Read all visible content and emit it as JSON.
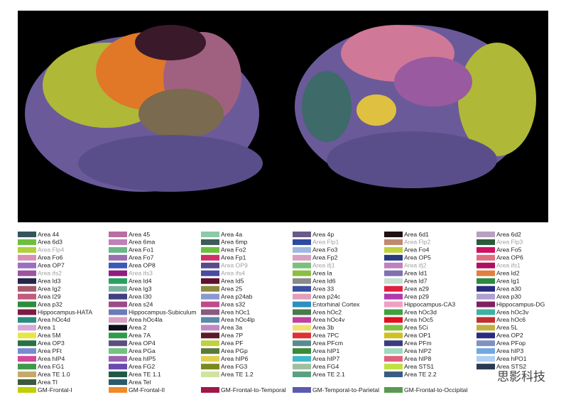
{
  "legend": {
    "columns": [
      [
        {
          "label": "Area 44",
          "color": "#34545c"
        },
        {
          "label": "Area 6d3",
          "color": "#6cbf3c"
        },
        {
          "label": "Area Flp4",
          "color": "#b0d040",
          "muted": true
        },
        {
          "label": "Area Fo6",
          "color": "#d98fb5"
        },
        {
          "label": "Area OP7",
          "color": "#9a6fc1"
        },
        {
          "label": "Area ifs2",
          "color": "#9b55a0",
          "muted": true
        },
        {
          "label": "Area Id3",
          "color": "#25254a"
        },
        {
          "label": "Area Ig2",
          "color": "#a85a6a"
        },
        {
          "label": "Area I29",
          "color": "#c25a7d"
        },
        {
          "label": "Area p32",
          "color": "#2d8c3c"
        },
        {
          "label": "Hippocampus-HATA",
          "color": "#7c1b43"
        },
        {
          "label": "Area hOc4d",
          "color": "#2a8c80"
        },
        {
          "label": "Area 1",
          "color": "#d9a8d9"
        },
        {
          "label": "Area 5M",
          "color": "#e6e644"
        },
        {
          "label": "Area OP3",
          "color": "#2a7040"
        },
        {
          "label": "Area PFt",
          "color": "#7a8ad0"
        },
        {
          "label": "Area hIP4",
          "color": "#d24a9a"
        },
        {
          "label": "Area FG1",
          "color": "#3e9a4a"
        },
        {
          "label": "Area TE 1.0",
          "color": "#c4a96a"
        },
        {
          "label": "Area TI",
          "color": "#3b5a3b"
        }
      ],
      [
        {
          "label": "Area 45",
          "color": "#b86ea0"
        },
        {
          "label": "Area 6ma",
          "color": "#c080b8"
        },
        {
          "label": "Area Fo1",
          "color": "#6ab888"
        },
        {
          "label": "Area Fo7",
          "color": "#9a6fb0"
        },
        {
          "label": "Area OP8",
          "color": "#3a5ab8"
        },
        {
          "label": "Area ifs3",
          "color": "#901e80",
          "muted": true
        },
        {
          "label": "Area Id4",
          "color": "#2aa060"
        },
        {
          "label": "Area Ig3",
          "color": "#7ab0a0"
        },
        {
          "label": "Area I30",
          "color": "#3e3e80"
        },
        {
          "label": "Area s24",
          "color": "#9a4a8a"
        },
        {
          "label": "Hippocampus-Subiculum",
          "color": "#6c7ab8"
        },
        {
          "label": "Area hOc4la",
          "color": "#d8a0c0"
        },
        {
          "label": "Area 2",
          "color": "#0e0e1a"
        },
        {
          "label": "Area 7A",
          "color": "#2e9a4a"
        },
        {
          "label": "Area OP4",
          "color": "#5e4e80"
        },
        {
          "label": "Area PGa",
          "color": "#76c080"
        },
        {
          "label": "Area hIP5",
          "color": "#9a62b0"
        },
        {
          "label": "Area FG2",
          "color": "#6a4ab0"
        },
        {
          "label": "Area TE 1.1",
          "color": "#1e5a44"
        },
        {
          "label": "Area TeI",
          "color": "#2a5a6a"
        }
      ],
      [
        {
          "label": "Area 4a",
          "color": "#8ccaa8"
        },
        {
          "label": "Area 6mp",
          "color": "#3e5a5a"
        },
        {
          "label": "Area Fo2",
          "color": "#6ac040"
        },
        {
          "label": "Area Fp1",
          "color": "#d0306a"
        },
        {
          "label": "Area OP9",
          "color": "#5a4a8a",
          "muted": true
        },
        {
          "label": "Area ifs4",
          "color": "#4a4aa0",
          "muted": true
        },
        {
          "label": "Area Id5",
          "color": "#60102a"
        },
        {
          "label": "Area 25",
          "color": "#8e8a40"
        },
        {
          "label": "Area p24ab",
          "color": "#8a9ad0"
        },
        {
          "label": "Area s32",
          "color": "#c04a8a"
        },
        {
          "label": "Area hOc1",
          "color": "#8a5a80"
        },
        {
          "label": "Area hOc4lp",
          "color": "#5a8aa8"
        },
        {
          "label": "Area 3a",
          "color": "#c08ac0"
        },
        {
          "label": "Area 7P",
          "color": "#5a1a2a"
        },
        {
          "label": "Area PF",
          "color": "#c0d040"
        },
        {
          "label": "Area PGp",
          "color": "#5a7a3a"
        },
        {
          "label": "Area hIP6",
          "color": "#e0d050"
        },
        {
          "label": "Area FG3",
          "color": "#7a8a20"
        },
        {
          "label": "Area TE 1.2",
          "color": "#d0e4a0"
        }
      ],
      [
        {
          "label": "Area 4p",
          "color": "#6a5a8a"
        },
        {
          "label": "Area Flp1",
          "color": "#2c4aa0",
          "muted": true
        },
        {
          "label": "Area Fo3",
          "color": "#a0b8e0"
        },
        {
          "label": "Area Fp2",
          "color": "#d8a0c0"
        },
        {
          "label": "Area ifj1",
          "color": "#7ac07a",
          "muted": true
        },
        {
          "label": "Area Ia",
          "color": "#8ac040"
        },
        {
          "label": "Area Id6",
          "color": "#8a8a8a"
        },
        {
          "label": "Area 33",
          "color": "#3a50a0"
        },
        {
          "label": "Area p24c",
          "color": "#e0a0b8"
        },
        {
          "label": "Entorhinal Cortex",
          "color": "#2a90c0"
        },
        {
          "label": "Area hOc2",
          "color": "#4a7a4a"
        },
        {
          "label": "Area hOc4v",
          "color": "#c040a0"
        },
        {
          "label": "Area 3b",
          "color": "#f0e070"
        },
        {
          "label": "Area 7PC",
          "color": "#e03030"
        },
        {
          "label": "Area PFcm",
          "color": "#5a8a90"
        },
        {
          "label": "Area hIP1",
          "color": "#3a8a3a"
        },
        {
          "label": "Area hIP7",
          "color": "#40b8c8"
        },
        {
          "label": "Area FG4",
          "color": "#a0c0a0"
        },
        {
          "label": "Area TE 2.1",
          "color": "#5aa080"
        }
      ],
      [
        {
          "label": "Area 6d1",
          "color": "#201010"
        },
        {
          "label": "Area Flp2",
          "color": "#c08a70",
          "muted": true
        },
        {
          "label": "Area Fo4",
          "color": "#c0d040"
        },
        {
          "label": "Area OP5",
          "color": "#2a3a80"
        },
        {
          "label": "Area ifj2",
          "color": "#c080c0",
          "muted": true
        },
        {
          "label": "Area Id1",
          "color": "#8070b0"
        },
        {
          "label": "Area Id7",
          "color": "#c8e0d0"
        },
        {
          "label": "Area a29",
          "color": "#e02040"
        },
        {
          "label": "Area p29",
          "color": "#b03ab0"
        },
        {
          "label": "Hippocampus-CA3",
          "color": "#f0a0c0"
        },
        {
          "label": "Area hOc3d",
          "color": "#40a040"
        },
        {
          "label": "Area hOc5",
          "color": "#e01020"
        },
        {
          "label": "Area 5Ci",
          "color": "#80c040"
        },
        {
          "label": "Area OP1",
          "color": "#d0c020"
        },
        {
          "label": "Area PFm",
          "color": "#3a3a80"
        },
        {
          "label": "Area hIP2",
          "color": "#a0d8c0"
        },
        {
          "label": "Area hIP8",
          "color": "#e06080"
        },
        {
          "label": "Area STS1",
          "color": "#c0e040"
        },
        {
          "label": "Area TE 2.2",
          "color": "#3a5a80"
        }
      ],
      [
        {
          "label": "Area 6d2",
          "color": "#b8a0c0"
        },
        {
          "label": "Area Flp3",
          "color": "#2a5a3a",
          "muted": true
        },
        {
          "label": "Area Fo5",
          "color": "#d01060"
        },
        {
          "label": "Area OP6",
          "color": "#e07080"
        },
        {
          "label": "Area ifs1",
          "color": "#b01060",
          "muted": true
        },
        {
          "label": "Area Id2",
          "color": "#e08040"
        },
        {
          "label": "Area Ig1",
          "color": "#2a8a40"
        },
        {
          "label": "Area a30",
          "color": "#2a2a80"
        },
        {
          "label": "Area p30",
          "color": "#b0a0d0"
        },
        {
          "label": "Hippocampus-DG",
          "color": "#802060"
        },
        {
          "label": "Area hOc3v",
          "color": "#40b0a0"
        },
        {
          "label": "Area hOc6",
          "color": "#c03030"
        },
        {
          "label": "Area 5L",
          "color": "#c0b040"
        },
        {
          "label": "Area OP2",
          "color": "#2a2a80"
        },
        {
          "label": "Area PFop",
          "color": "#8090c0"
        },
        {
          "label": "Area hIP3",
          "color": "#70a8e0"
        },
        {
          "label": "Area hPO1",
          "color": "#b0d0f0"
        },
        {
          "label": "Area STS2",
          "color": "#2a3a50"
        }
      ]
    ],
    "gm": [
      {
        "label": "GM-Frontal-I",
        "color": "#c0d000"
      },
      {
        "label": "GM-Frontal-II",
        "color": "#f08a2a"
      },
      {
        "label": "GM-Frontal-to-Temporal",
        "color": "#a01848"
      },
      {
        "label": "GM-Temporal-to-Parietal",
        "color": "#5a5ab0"
      },
      {
        "label": "GM-Frontal-to-Occipital",
        "color": "#5a9a50"
      }
    ]
  },
  "watermark": "思影科技"
}
